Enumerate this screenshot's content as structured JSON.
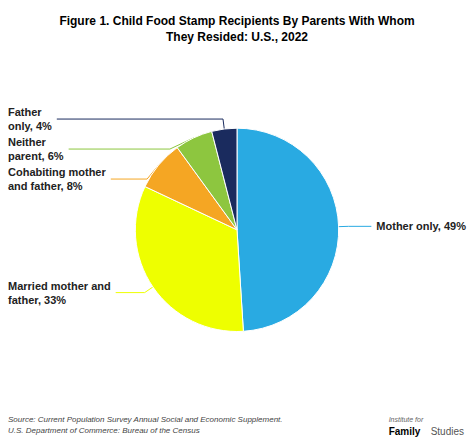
{
  "chart_data": {
    "type": "pie",
    "title": "Figure 1. Child Food Stamp Recipients By Parents With Whom\nThey Resided: U.S., 2022",
    "values": [
      49,
      33,
      8,
      6,
      4
    ],
    "value_labels": [
      "Mother only, 49%",
      "Married mother and\nfather, 33%",
      "Cohabiting mother\nand father, 8%",
      "Neither\nparent, 6%",
      "Father\nonly, 4%"
    ],
    "colors": [
      "#29aae2",
      "#eeff00",
      "#f5a623",
      "#8dc63f",
      "#1a2b5e"
    ],
    "data_labels": true,
    "annotations": [
      "Source: Current Population Survey Annual Social and Economic Supplement.\nU.S. Department of Commerce: Bureau of the Census",
      "Institute for",
      "Family",
      "Studies"
    ]
  }
}
